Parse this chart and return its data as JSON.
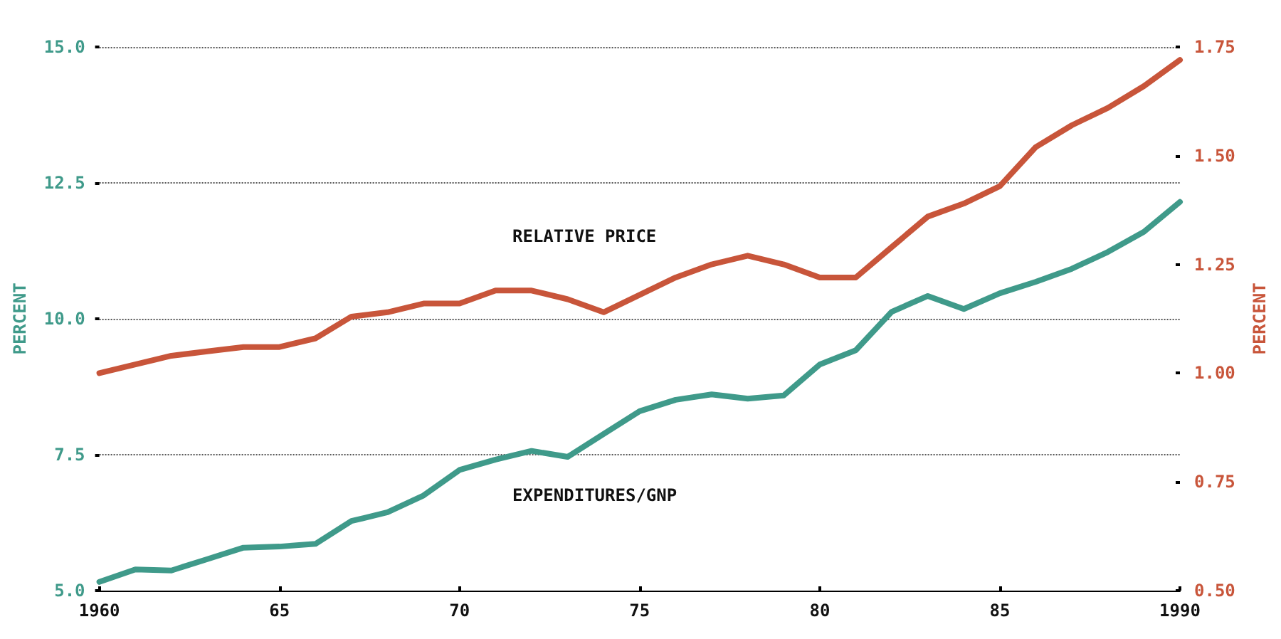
{
  "chart_data": {
    "type": "line",
    "ylabel": "PERCENT",
    "y2label": "PERCENT",
    "x": [
      1960,
      1961,
      1962,
      1963,
      1964,
      1965,
      1966,
      1967,
      1968,
      1969,
      1970,
      1971,
      1972,
      1973,
      1974,
      1975,
      1976,
      1977,
      1978,
      1979,
      1980,
      1981,
      1982,
      1983,
      1984,
      1985,
      1986,
      1987,
      1988,
      1989,
      1990
    ],
    "series": [
      {
        "color": "#3f9a8a",
        "values": [
          5.16,
          5.39,
          5.37,
          5.58,
          5.79,
          5.81,
          5.86,
          6.28,
          6.44,
          6.75,
          7.22,
          7.41,
          7.57,
          7.46,
          7.88,
          8.3,
          8.51,
          8.61,
          8.53,
          8.59,
          9.16,
          9.42,
          10.13,
          10.42,
          10.18,
          10.47,
          10.68,
          10.92,
          11.23,
          11.6,
          12.15
        ]
      },
      {
        "color": "#c8553a",
        "axis": "y2",
        "values": [
          1.0,
          1.02,
          1.04,
          1.05,
          1.06,
          1.06,
          1.08,
          1.13,
          1.14,
          1.16,
          1.16,
          1.19,
          1.19,
          1.17,
          1.14,
          1.18,
          1.22,
          1.25,
          1.27,
          1.25,
          1.22,
          1.22,
          1.29,
          1.36,
          1.39,
          1.43,
          1.52,
          1.57,
          1.61,
          1.66,
          1.72
        ]
      }
    ],
    "annotations": [
      "RELATIVE PRICE",
      "EXPENDITURES/GNP"
    ],
    "xlim": [
      1960,
      1990
    ],
    "xticks": [
      {
        "value": 1960,
        "label": "1960"
      },
      {
        "value": 1965,
        "label": "65"
      },
      {
        "value": 1970,
        "label": "70"
      },
      {
        "value": 1975,
        "label": "75"
      },
      {
        "value": 1980,
        "label": "80"
      },
      {
        "value": 1985,
        "label": "85"
      },
      {
        "value": 1990,
        "label": "1990"
      }
    ],
    "ylim": [
      5,
      15
    ],
    "yticks": [
      {
        "value": 5,
        "label": "5.0"
      },
      {
        "value": 7.5,
        "label": "7.5"
      },
      {
        "value": 10,
        "label": "10.0"
      },
      {
        "value": 12.5,
        "label": "12.5"
      },
      {
        "value": 15,
        "label": "15.0"
      }
    ],
    "y2lim": [
      0.5,
      1.75
    ],
    "y2ticks": [
      {
        "value": 0.5,
        "label": "0.50"
      },
      {
        "value": 0.75,
        "label": "0.75"
      },
      {
        "value": 1,
        "label": "1.00"
      },
      {
        "value": 1.25,
        "label": "1.25"
      },
      {
        "value": 1.5,
        "label": "1.50"
      },
      {
        "value": 1.75,
        "label": "1.75"
      }
    ],
    "grid": "y",
    "marker": "none",
    "line_style": "solid"
  }
}
